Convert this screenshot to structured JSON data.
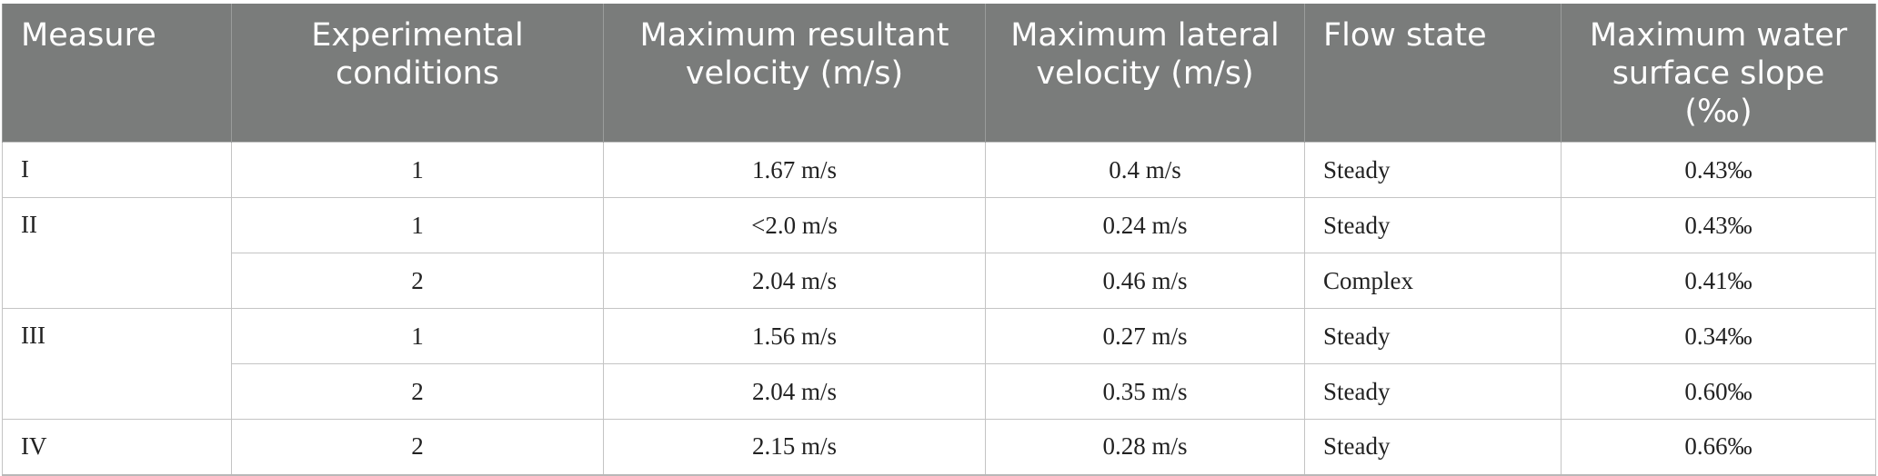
{
  "table": {
    "headers": [
      "Measure",
      "Experimental conditions",
      "Maximum resultant velocity (m/s)",
      "Maximum lateral velocity (m/s)",
      "Flow state",
      "Maximum water surface slope (‰)"
    ],
    "groups": [
      {
        "measure": "I",
        "rows": [
          {
            "condition": "1",
            "resultant": "1.67 m/s",
            "lateral": "0.4 m/s",
            "flow": "Steady",
            "slope": "0.43‰"
          }
        ]
      },
      {
        "measure": "II",
        "rows": [
          {
            "condition": "1",
            "resultant": "<2.0 m/s",
            "lateral": "0.24 m/s",
            "flow": "Steady",
            "slope": "0.43‰"
          },
          {
            "condition": "2",
            "resultant": "2.04 m/s",
            "lateral": "0.46 m/s",
            "flow": "Complex",
            "slope": "0.41‰"
          }
        ]
      },
      {
        "measure": "III",
        "rows": [
          {
            "condition": "1",
            "resultant": "1.56 m/s",
            "lateral": "0.27 m/s",
            "flow": "Steady",
            "slope": "0.34‰"
          },
          {
            "condition": "2",
            "resultant": "2.04 m/s",
            "lateral": "0.35 m/s",
            "flow": "Steady",
            "slope": "0.60‰"
          }
        ]
      },
      {
        "measure": "IV",
        "rows": [
          {
            "condition": "2",
            "resultant": "2.15 m/s",
            "lateral": "0.28 m/s",
            "flow": "Steady",
            "slope": "0.66‰"
          }
        ]
      }
    ]
  },
  "colors": {
    "header_bg": "#7a7c7b",
    "header_text": "#ffffff",
    "grid": "#c4c4c4"
  }
}
